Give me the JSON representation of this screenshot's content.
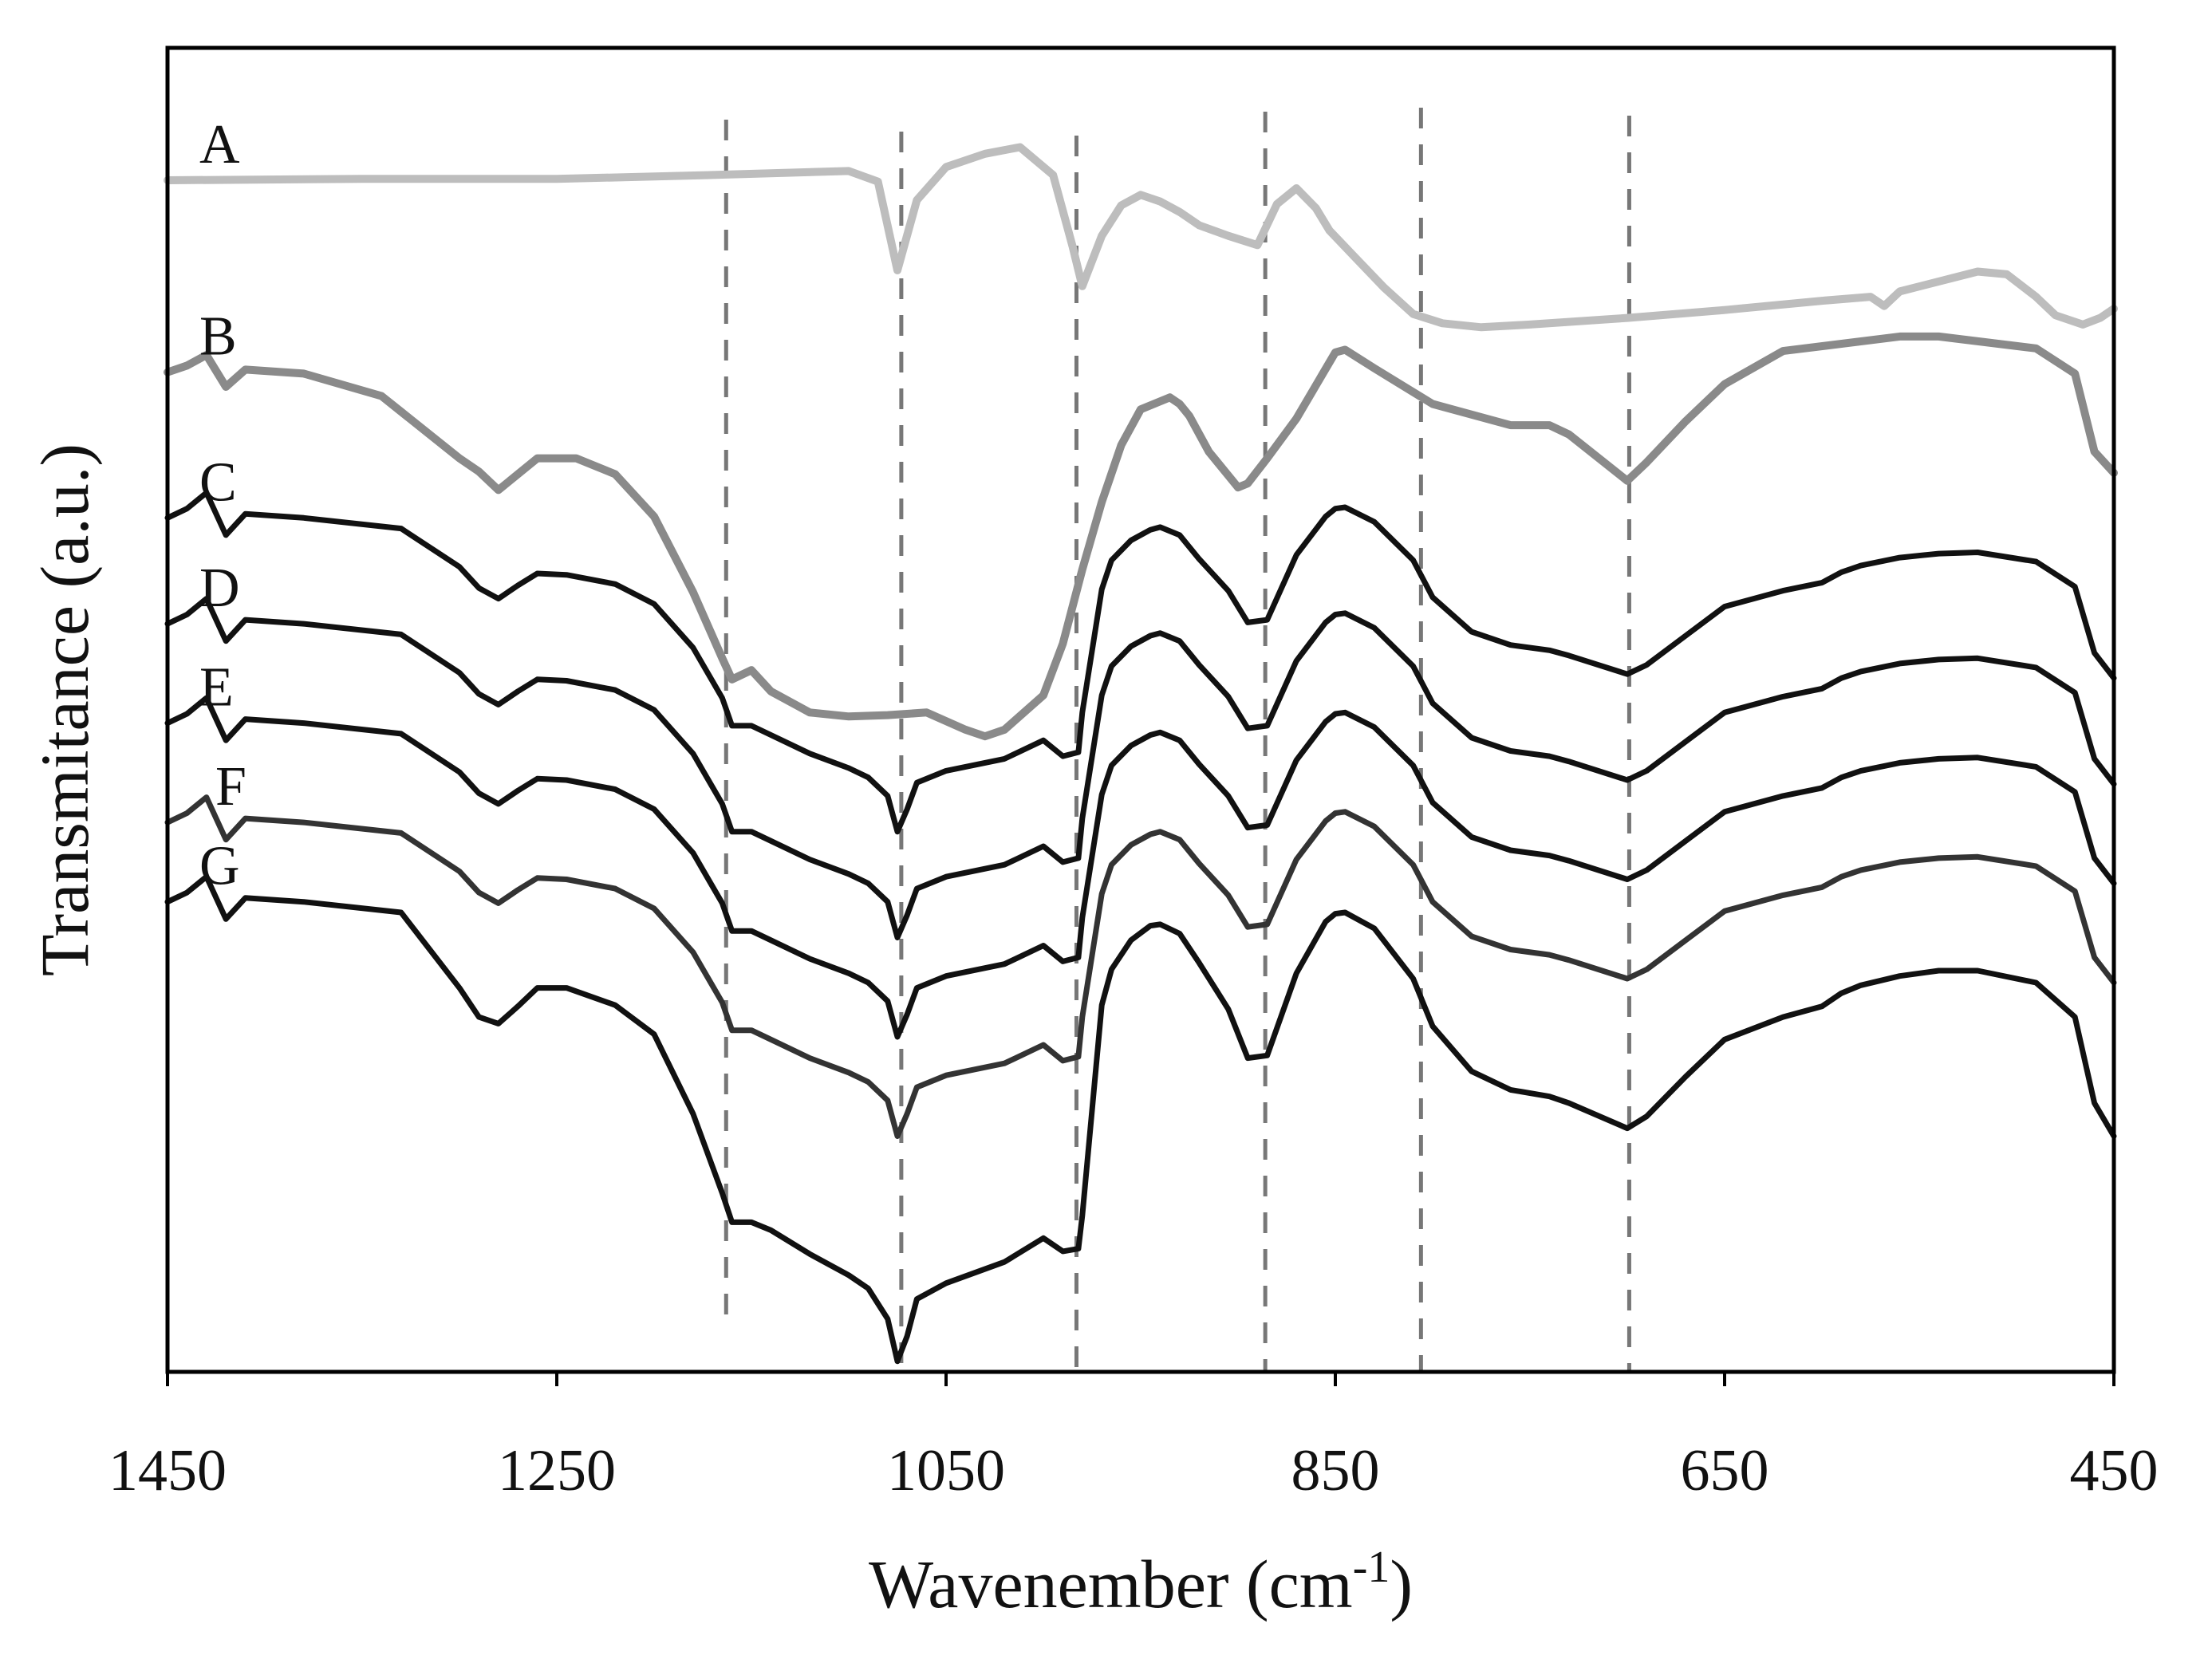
{
  "chart_data": {
    "type": "line",
    "xlabel_main": "Wavenember (cm",
    "xlabel_sup": "-1",
    "xlabel_end": ")",
    "ylabel": "Transmitance (a.u.)",
    "xlim": [
      1450,
      450
    ],
    "ylim": [
      0,
      100
    ],
    "x_ticks": [
      1450,
      1250,
      1050,
      850,
      650,
      450
    ],
    "x_tick_labels": [
      "1450",
      "1250",
      "1050",
      "850",
      "650",
      "450"
    ],
    "reference_lines": [
      1163,
      1073,
      983,
      886,
      806,
      699
    ],
    "series": [
      {
        "name": "A",
        "color": "#bdbdbd",
        "width": 10,
        "x": [
          1450,
          1350,
          1250,
          1170,
          1100,
          1085,
          1075,
          1065,
          1050,
          1030,
          1012,
          995,
          985,
          980,
          970,
          960,
          950,
          940,
          930,
          920,
          905,
          890,
          880,
          870,
          860,
          853,
          840,
          825,
          810,
          795,
          775,
          750,
          700,
          650,
          600,
          575,
          568,
          560,
          520,
          505,
          490,
          480,
          466,
          457,
          450
        ],
        "y": [
          90,
          90.1,
          90.1,
          90.4,
          90.7,
          89.9,
          83.2,
          88.5,
          91,
          92,
          92.5,
          90.4,
          85,
          82,
          85.8,
          88.1,
          88.9,
          88.4,
          87.6,
          86.6,
          85.8,
          85.1,
          88.2,
          89.4,
          87.9,
          86.2,
          84.2,
          81.9,
          79.9,
          79.2,
          78.9,
          79.1,
          79.6,
          80.2,
          80.9,
          81.2,
          80.5,
          81.6,
          83.1,
          82.9,
          81.2,
          79.8,
          79.1,
          79.6,
          80.3
        ]
      },
      {
        "name": "B",
        "color": "#8a8a8a",
        "width": 10,
        "x": [
          1450,
          1440,
          1430,
          1420,
          1410,
          1380,
          1340,
          1300,
          1290,
          1280,
          1270,
          1260,
          1240,
          1220,
          1200,
          1180,
          1165,
          1160,
          1150,
          1140,
          1120,
          1100,
          1080,
          1060,
          1040,
          1030,
          1020,
          1000,
          990,
          980,
          970,
          960,
          950,
          935,
          930,
          925,
          915,
          900,
          895,
          885,
          870,
          850,
          845,
          830,
          800,
          760,
          740,
          730,
          700,
          690,
          670,
          650,
          620,
          560,
          540,
          490,
          470,
          460,
          450
        ],
        "y": [
          75.5,
          76,
          76.8,
          74.4,
          75.7,
          75.4,
          73.7,
          69,
          68,
          66.6,
          67.8,
          69,
          69,
          67.8,
          64.6,
          58.9,
          53.9,
          52.3,
          53,
          51.4,
          49.8,
          49.5,
          49.6,
          49.8,
          48.5,
          48,
          48.5,
          51.1,
          55,
          60.6,
          65.7,
          70,
          72.7,
          73.6,
          73.1,
          72.2,
          69.5,
          66.8,
          67.1,
          69,
          72,
          77,
          77.2,
          75.8,
          73.1,
          71.5,
          71.5,
          70.8,
          67.3,
          68.7,
          71.8,
          74.6,
          77.1,
          78.2,
          78.2,
          77.3,
          75.4,
          69.5,
          67.9
        ]
      },
      {
        "name": "C",
        "color": "#111111",
        "width": 7,
        "x": [
          1450,
          1440,
          1430,
          1420,
          1410,
          1380,
          1330,
          1300,
          1290,
          1280,
          1270,
          1260,
          1245,
          1220,
          1200,
          1180,
          1165,
          1160,
          1150,
          1140,
          1120,
          1100,
          1090,
          1080,
          1075,
          1070,
          1065,
          1050,
          1020,
          1000,
          990,
          982,
          980,
          970,
          965,
          955,
          945,
          940,
          930,
          920,
          905,
          895,
          885,
          870,
          855,
          850,
          845,
          830,
          810,
          800,
          780,
          760,
          740,
          730,
          700,
          690,
          670,
          650,
          620,
          600,
          590,
          580,
          560,
          540,
          520,
          490,
          470,
          460,
          450
        ],
        "y": [
          64.5,
          65.2,
          66.4,
          63.2,
          64.8,
          64.5,
          63.7,
          60.8,
          59.2,
          58.4,
          59.4,
          60.3,
          60.2,
          59.5,
          58,
          54.7,
          50.9,
          48.8,
          48.8,
          48.1,
          46.7,
          45.6,
          44.9,
          43.5,
          40.8,
          42.5,
          44.5,
          45.4,
          46.3,
          47.7,
          46.5,
          46.8,
          49.8,
          59.1,
          61.3,
          62.8,
          63.6,
          63.8,
          63.2,
          61.4,
          59,
          56.6,
          56.8,
          61.7,
          64.6,
          65.2,
          65.3,
          64.2,
          61.3,
          58.5,
          55.9,
          54.9,
          54.5,
          54.1,
          52.7,
          53.4,
          55.6,
          57.8,
          59,
          59.6,
          60.4,
          60.9,
          61.5,
          61.8,
          61.9,
          61.2,
          59.3,
          54.3,
          52.4
        ]
      },
      {
        "name": "D",
        "color": "#111111",
        "width": 7,
        "x": [
          1450,
          1440,
          1430,
          1420,
          1410,
          1380,
          1330,
          1300,
          1290,
          1280,
          1270,
          1260,
          1245,
          1220,
          1200,
          1180,
          1165,
          1160,
          1150,
          1140,
          1120,
          1100,
          1090,
          1080,
          1075,
          1070,
          1065,
          1050,
          1020,
          1000,
          990,
          982,
          980,
          970,
          965,
          955,
          945,
          940,
          930,
          920,
          905,
          895,
          885,
          870,
          855,
          850,
          845,
          830,
          810,
          800,
          780,
          760,
          740,
          730,
          700,
          690,
          670,
          650,
          620,
          600,
          590,
          580,
          560,
          540,
          520,
          490,
          470,
          460,
          450
        ],
        "y": [
          56.5,
          57.2,
          58.4,
          55.2,
          56.8,
          56.5,
          55.7,
          52.8,
          51.2,
          50.4,
          51.4,
          52.3,
          52.2,
          51.5,
          50,
          46.7,
          42.9,
          40.8,
          40.8,
          40.1,
          38.7,
          37.6,
          36.9,
          35.5,
          32.8,
          34.5,
          36.5,
          37.4,
          38.3,
          39.7,
          38.5,
          38.8,
          41.8,
          51.1,
          53.3,
          54.8,
          55.6,
          55.8,
          55.2,
          53.4,
          51,
          48.6,
          48.8,
          53.7,
          56.6,
          57.2,
          57.3,
          56.2,
          53.3,
          50.5,
          47.9,
          46.9,
          46.5,
          46.1,
          44.7,
          45.4,
          47.6,
          49.8,
          51,
          51.6,
          52.4,
          52.9,
          53.5,
          53.8,
          53.9,
          53.2,
          51.3,
          46.3,
          44.4
        ]
      },
      {
        "name": "E",
        "color": "#111111",
        "width": 7,
        "x": [
          1450,
          1440,
          1430,
          1420,
          1410,
          1380,
          1330,
          1300,
          1290,
          1280,
          1270,
          1260,
          1245,
          1220,
          1200,
          1180,
          1165,
          1160,
          1150,
          1140,
          1120,
          1100,
          1090,
          1080,
          1075,
          1070,
          1065,
          1050,
          1020,
          1000,
          990,
          982,
          980,
          970,
          965,
          955,
          945,
          940,
          930,
          920,
          905,
          895,
          885,
          870,
          855,
          850,
          845,
          830,
          810,
          800,
          780,
          760,
          740,
          730,
          700,
          690,
          670,
          650,
          620,
          600,
          590,
          580,
          560,
          540,
          520,
          490,
          470,
          460,
          450
        ],
        "y": [
          49,
          49.7,
          50.9,
          47.7,
          49.3,
          49,
          48.2,
          45.3,
          43.7,
          42.9,
          43.9,
          44.8,
          44.7,
          44,
          42.5,
          39.2,
          35.4,
          33.3,
          33.3,
          32.6,
          31.2,
          30.1,
          29.4,
          28,
          25.3,
          27,
          29,
          29.9,
          30.8,
          32.2,
          31,
          31.3,
          34.3,
          43.6,
          45.8,
          47.3,
          48.1,
          48.3,
          47.7,
          45.9,
          43.5,
          41.1,
          41.3,
          46.2,
          49.1,
          49.7,
          49.8,
          48.7,
          45.8,
          43,
          40.4,
          39.4,
          39,
          38.6,
          37.2,
          37.9,
          40.1,
          42.3,
          43.5,
          44.1,
          44.9,
          45.4,
          46,
          46.3,
          46.4,
          45.7,
          43.8,
          38.8,
          36.9
        ]
      },
      {
        "name": "F",
        "color": "#333333",
        "width": 7,
        "x": [
          1450,
          1440,
          1430,
          1420,
          1410,
          1380,
          1330,
          1300,
          1290,
          1280,
          1270,
          1260,
          1245,
          1220,
          1200,
          1180,
          1165,
          1160,
          1150,
          1140,
          1120,
          1100,
          1090,
          1080,
          1075,
          1070,
          1065,
          1050,
          1020,
          1000,
          990,
          982,
          980,
          970,
          965,
          955,
          945,
          940,
          930,
          920,
          905,
          895,
          885,
          870,
          855,
          850,
          845,
          830,
          810,
          800,
          780,
          760,
          740,
          730,
          700,
          690,
          670,
          650,
          620,
          600,
          590,
          580,
          560,
          540,
          520,
          490,
          470,
          460,
          450
        ],
        "y": [
          41.5,
          42.2,
          43.4,
          40.2,
          41.8,
          41.5,
          40.7,
          37.8,
          36.2,
          35.4,
          36.4,
          37.3,
          37.2,
          36.5,
          35,
          31.7,
          27.9,
          25.8,
          25.8,
          25.1,
          23.7,
          22.6,
          21.9,
          20.5,
          17.8,
          19.5,
          21.5,
          22.4,
          23.3,
          24.7,
          23.5,
          23.8,
          26.8,
          36.1,
          38.3,
          39.8,
          40.6,
          40.8,
          40.2,
          38.4,
          36,
          33.6,
          33.8,
          38.7,
          41.6,
          42.2,
          42.3,
          41.2,
          38.3,
          35.5,
          32.9,
          31.9,
          31.5,
          31.1,
          29.7,
          30.4,
          32.6,
          34.8,
          36,
          36.6,
          37.4,
          37.9,
          38.5,
          38.8,
          38.9,
          38.2,
          36.3,
          31.3,
          29.4
        ]
      },
      {
        "name": "G",
        "color": "#111111",
        "width": 7,
        "x": [
          1450,
          1440,
          1430,
          1420,
          1410,
          1380,
          1330,
          1300,
          1290,
          1280,
          1270,
          1260,
          1245,
          1220,
          1200,
          1180,
          1165,
          1160,
          1150,
          1140,
          1120,
          1100,
          1090,
          1080,
          1075,
          1070,
          1065,
          1050,
          1020,
          1000,
          990,
          982,
          980,
          970,
          965,
          955,
          945,
          940,
          930,
          920,
          905,
          895,
          885,
          870,
          855,
          850,
          845,
          830,
          810,
          800,
          780,
          760,
          740,
          730,
          700,
          690,
          670,
          650,
          620,
          600,
          590,
          580,
          560,
          540,
          520,
          490,
          470,
          460,
          450
        ],
        "y": [
          35.5,
          36.2,
          37.4,
          34.2,
          35.8,
          35.5,
          34.7,
          29,
          26.8,
          26.3,
          27.6,
          29,
          29,
          27.7,
          25.5,
          19.5,
          13.5,
          11.3,
          11.3,
          10.7,
          8.9,
          7.3,
          6.3,
          4,
          0.8,
          2.7,
          5.5,
          6.7,
          8.3,
          10.1,
          9.1,
          9.3,
          11.8,
          27.7,
          30.4,
          32.6,
          33.7,
          33.8,
          33.1,
          30.9,
          27.4,
          23.7,
          23.9,
          30.1,
          34,
          34.6,
          34.7,
          33.5,
          29.7,
          26.1,
          22.7,
          21.3,
          20.8,
          20.3,
          18.4,
          19.3,
          22.3,
          25.1,
          26.8,
          27.6,
          28.6,
          29.2,
          29.9,
          30.3,
          30.3,
          29.4,
          26.8,
          20.3,
          17.8
        ]
      }
    ]
  }
}
